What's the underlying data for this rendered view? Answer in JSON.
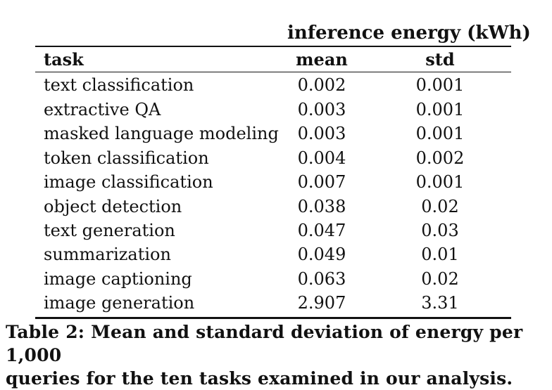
{
  "table": {
    "group_header": "inference energy (kWh)",
    "columns": {
      "task": "task",
      "mean": "mean",
      "std": "std"
    },
    "rows": [
      {
        "task": "text classification",
        "mean": "0.002",
        "std": "0.001"
      },
      {
        "task": "extractive QA",
        "mean": "0.003",
        "std": "0.001"
      },
      {
        "task": "masked language modeling",
        "mean": "0.003",
        "std": "0.001"
      },
      {
        "task": "token classification",
        "mean": "0.004",
        "std": "0.002"
      },
      {
        "task": "image classification",
        "mean": "0.007",
        "std": "0.001"
      },
      {
        "task": "object detection",
        "mean": "0.038",
        "std": "0.02"
      },
      {
        "task": "text generation",
        "mean": "0.047",
        "std": "0.03"
      },
      {
        "task": "summarization",
        "mean": "0.049",
        "std": "0.01"
      },
      {
        "task": "image captioning",
        "mean": "0.063",
        "std": "0.02"
      },
      {
        "task": "image generation",
        "mean": "2.907",
        "std": "3.31"
      }
    ]
  },
  "caption": {
    "line1": "Table 2: Mean and standard deviation of energy per 1,000",
    "line2": "queries for the ten tasks examined in our analysis."
  }
}
